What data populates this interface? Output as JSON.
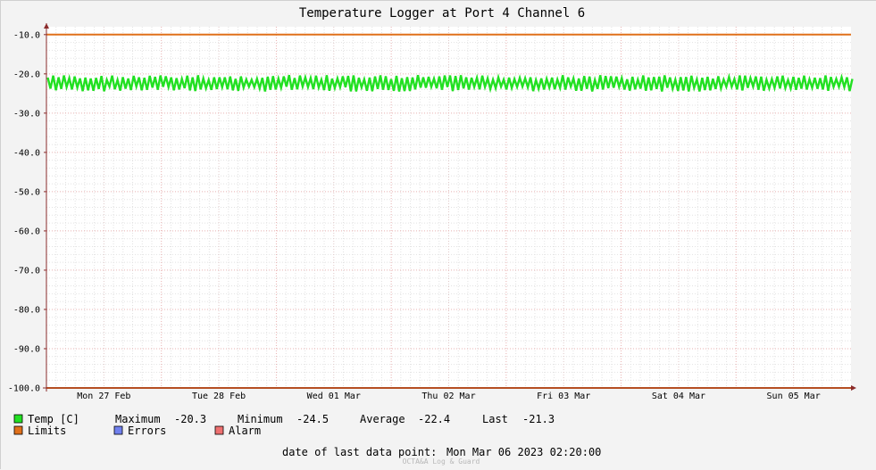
{
  "chart_data": {
    "type": "line",
    "title": "Temperature Logger at Port 4 Channel 6",
    "ylim": [
      -100,
      -8
    ],
    "yticks": [
      "-10.0",
      "-20.0",
      "-30.0",
      "-40.0",
      "-50.0",
      "-60.0",
      "-70.0",
      "-80.0",
      "-90.0",
      "-100.0"
    ],
    "ytick_values": [
      -10,
      -20,
      -30,
      -40,
      -50,
      -60,
      -70,
      -80,
      -90,
      -100
    ],
    "x_range_days": [
      0,
      7
    ],
    "xticks": [
      {
        "label": "Mon 27 Feb",
        "day": 0.5
      },
      {
        "label": "Tue 28 Feb",
        "day": 1.5
      },
      {
        "label": "Wed 01 Mar",
        "day": 2.5
      },
      {
        "label": "Thu 02 Mar",
        "day": 3.5
      },
      {
        "label": "Fri 03 Mar",
        "day": 4.5
      },
      {
        "label": "Sat 04 Mar",
        "day": 5.5
      },
      {
        "label": "Sun 05 Mar",
        "day": 6.5
      }
    ],
    "grid": true,
    "series": [
      {
        "name": "Temp [C]",
        "color": "#22e022",
        "min": -24.5,
        "max": -20.3,
        "mean": -22.4,
        "last": -21.3
      }
    ],
    "limits": {
      "upper": -10.0,
      "lower": -100.0,
      "color": "#e0701a"
    }
  },
  "legend": {
    "temp_label": "Temp [C]",
    "maximum_label": "Maximum",
    "maximum_value": "-20.3",
    "minimum_label": "Minimum",
    "minimum_value": "-24.5",
    "average_label": "Average",
    "average_value": "-22.4",
    "last_label": "Last",
    "last_value": "-21.3",
    "limits_label": "Limits",
    "errors_label": "Errors",
    "alarm_label": "Alarm",
    "colors": {
      "temp": "#22e022",
      "limits": "#e0701a",
      "errors": "#7080ee",
      "alarm": "#ee7070"
    }
  },
  "footer": {
    "last_point_label": "date of last data point:",
    "last_point_value": "Mon Mar 06 2023 02:20:00",
    "credit": "OCTA&A Log & Guard"
  }
}
